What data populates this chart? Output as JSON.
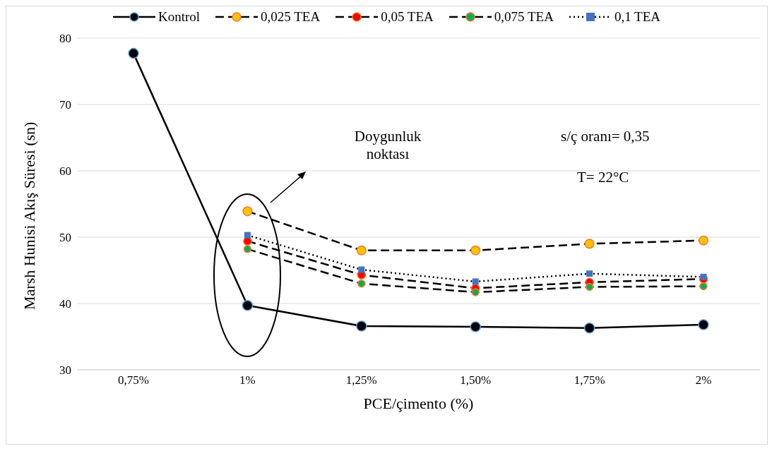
{
  "chart_data": {
    "type": "line",
    "xlabel": "PCE/çimento (%)",
    "ylabel": "Marsh Hunisi Akış Süresi (sn)",
    "categories": [
      "0,75%",
      "1%",
      "1,25%",
      "1,50%",
      "1,75%",
      "2%"
    ],
    "series": [
      {
        "name": "Kontrol",
        "color": "#000000",
        "marker": "circle",
        "line_style": "solid",
        "values": [
          77.7,
          39.7,
          36.6,
          36.5,
          36.3,
          36.8
        ]
      },
      {
        "name": "0,025 TEA",
        "color": "#ffc000",
        "marker": "circle",
        "line_style": "dashed",
        "values": [
          null,
          53.9,
          48.0,
          48.0,
          49.0,
          49.5
        ]
      },
      {
        "name": "0,05 TEA",
        "color": "#ff0000",
        "marker": "circle",
        "line_style": "dashed",
        "values": [
          null,
          49.4,
          44.3,
          42.3,
          43.2,
          43.7
        ]
      },
      {
        "name": "0,075 TEA",
        "color": "#00b050",
        "marker": "circle",
        "line_style": "dashed",
        "values": [
          null,
          48.2,
          43.0,
          41.7,
          42.5,
          42.6
        ]
      },
      {
        "name": "0,1 TEA",
        "color": "#4472c4",
        "marker": "square",
        "line_style": "dotted",
        "values": [
          null,
          50.3,
          45.1,
          43.3,
          44.5,
          44.0
        ]
      }
    ],
    "ylim": [
      30,
      80
    ],
    "yticks": [
      30,
      40,
      50,
      60,
      70,
      80
    ],
    "grid": "y",
    "legend": "top",
    "annotations": [
      "Doygunluk noktası",
      "s/ç oranı= 0,35",
      "T= 22°C"
    ]
  }
}
